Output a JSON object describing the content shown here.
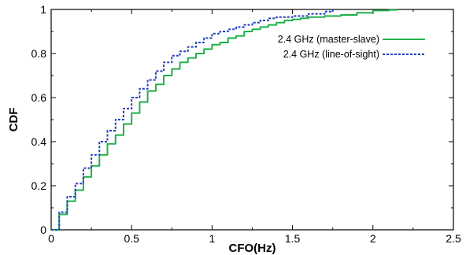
{
  "chart_data": {
    "type": "line",
    "title": "",
    "xlabel": "CFO(Hz)",
    "ylabel": "CDF",
    "xlim": [
      0,
      2.5
    ],
    "ylim": [
      0,
      1
    ],
    "xticks": [
      0,
      0.5,
      1,
      1.5,
      2,
      2.5
    ],
    "xtick_labels": [
      "0",
      "0.5",
      "1",
      "1.5",
      "2",
      "2.5"
    ],
    "yticks": [
      0,
      0.2,
      0.4,
      0.6,
      0.8,
      1
    ],
    "ytick_labels": [
      "0",
      "0.2",
      "0.4",
      "0.6",
      "0.8",
      "1"
    ],
    "grid": false,
    "legend_position": "top-right",
    "series": [
      {
        "name": "2.4 GHz (master-slave)",
        "color": "#22b04b",
        "style": "solid",
        "x": [
          0,
          0.05,
          0.1,
          0.15,
          0.2,
          0.25,
          0.3,
          0.35,
          0.4,
          0.45,
          0.5,
          0.55,
          0.6,
          0.65,
          0.7,
          0.75,
          0.8,
          0.85,
          0.9,
          0.95,
          1.0,
          1.05,
          1.1,
          1.15,
          1.2,
          1.25,
          1.3,
          1.35,
          1.4,
          1.45,
          1.5,
          1.55,
          1.6,
          1.7,
          1.8,
          1.9,
          2.0,
          2.1,
          2.15
        ],
        "y": [
          0,
          0.07,
          0.13,
          0.18,
          0.24,
          0.29,
          0.34,
          0.39,
          0.43,
          0.48,
          0.53,
          0.58,
          0.63,
          0.66,
          0.7,
          0.73,
          0.76,
          0.78,
          0.8,
          0.82,
          0.84,
          0.85,
          0.87,
          0.88,
          0.9,
          0.91,
          0.92,
          0.93,
          0.94,
          0.95,
          0.955,
          0.96,
          0.965,
          0.97,
          0.975,
          0.985,
          0.995,
          0.998,
          1.0
        ]
      },
      {
        "name": "2.4 GHz (line-of-sight)",
        "color": "#1f3fbf",
        "style": "dashed",
        "x": [
          0,
          0.05,
          0.1,
          0.15,
          0.2,
          0.25,
          0.3,
          0.35,
          0.4,
          0.45,
          0.5,
          0.55,
          0.6,
          0.65,
          0.7,
          0.75,
          0.8,
          0.85,
          0.9,
          0.95,
          1.0,
          1.05,
          1.1,
          1.15,
          1.2,
          1.25,
          1.3,
          1.35,
          1.4,
          1.5,
          1.6,
          1.7,
          1.75
        ],
        "y": [
          0,
          0.08,
          0.15,
          0.21,
          0.28,
          0.34,
          0.4,
          0.45,
          0.5,
          0.55,
          0.6,
          0.64,
          0.68,
          0.72,
          0.76,
          0.79,
          0.81,
          0.83,
          0.85,
          0.87,
          0.89,
          0.9,
          0.91,
          0.92,
          0.93,
          0.94,
          0.95,
          0.96,
          0.965,
          0.97,
          0.98,
          0.99,
          1.0
        ]
      }
    ]
  }
}
